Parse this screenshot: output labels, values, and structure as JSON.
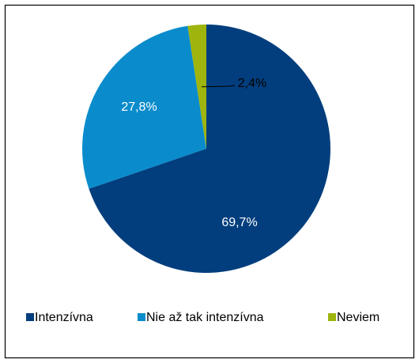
{
  "chart_data": {
    "type": "pie",
    "categories": [
      "Intenzívna",
      "Nie až tak intenzívna",
      "Neviem"
    ],
    "values": [
      69.7,
      27.8,
      2.4
    ],
    "value_labels": [
      "69,7%",
      "27,8%",
      "2,4%"
    ],
    "colors": [
      "#023e7d",
      "#0a8ccc",
      "#9fb40c"
    ],
    "legend": "bottom"
  }
}
